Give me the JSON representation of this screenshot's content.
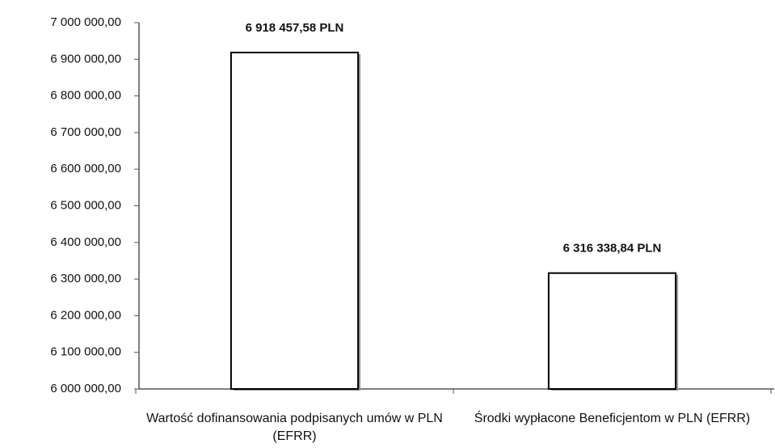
{
  "chart_data": {
    "type": "bar",
    "categories": [
      "Wartość dofinansowania podpisanych umów w PLN (EFRR)",
      "Środki wypłacone Beneficjentom w PLN (EFRR)"
    ],
    "values": [
      6918457.58,
      6316338.84
    ],
    "value_labels": [
      "6 918 457,58 PLN",
      "6 316 338,84 PLN"
    ],
    "color": "#ffffff",
    "ylim": [
      6000000,
      7000000
    ],
    "yticks": [
      {
        "value": 6000000,
        "label": "6 000 000,00"
      },
      {
        "value": 6100000,
        "label": "6 100 000,00"
      },
      {
        "value": 6200000,
        "label": "6 200 000,00"
      },
      {
        "value": 6300000,
        "label": "6 300 000,00"
      },
      {
        "value": 6400000,
        "label": "6 400 000,00"
      },
      {
        "value": 6500000,
        "label": "6 500 000,00"
      },
      {
        "value": 6600000,
        "label": "6 600 000,00"
      },
      {
        "value": 6700000,
        "label": "6 700 000,00"
      },
      {
        "value": 6800000,
        "label": "6 800 000,00"
      },
      {
        "value": 6900000,
        "label": "6 900 000,00"
      },
      {
        "value": 7000000,
        "label": "7 000 000,00"
      }
    ],
    "grid": false
  }
}
